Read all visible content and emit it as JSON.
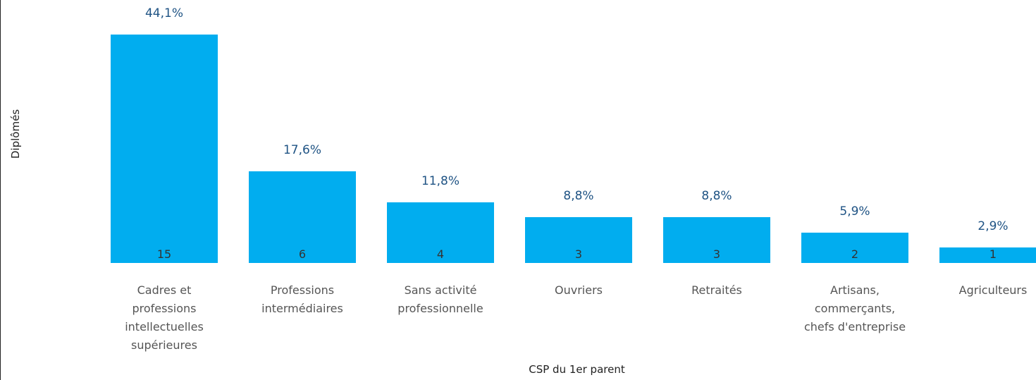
{
  "chart_data": {
    "type": "bar",
    "x_label": "CSP du 1er parent",
    "y_label": "Diplômés",
    "categories": [
      "Cadres et professions intellectuelles supérieures",
      "Professions intermédiaires",
      "Sans activité professionnelle",
      "Ouvriers",
      "Retraités",
      "Artisans, commerçants, chefs d'entreprise",
      "Agriculteurs"
    ],
    "values": [
      15,
      6,
      4,
      3,
      3,
      2,
      1
    ],
    "shares": [
      44.1,
      17.6,
      11.8,
      8.8,
      8.8,
      5.9,
      2.9
    ],
    "share_labels": [
      "44,1%",
      "17,6%",
      "11,8%",
      "8,8%",
      "8,8%",
      "5,9%",
      "2,9%"
    ],
    "color": "#01adef"
  }
}
